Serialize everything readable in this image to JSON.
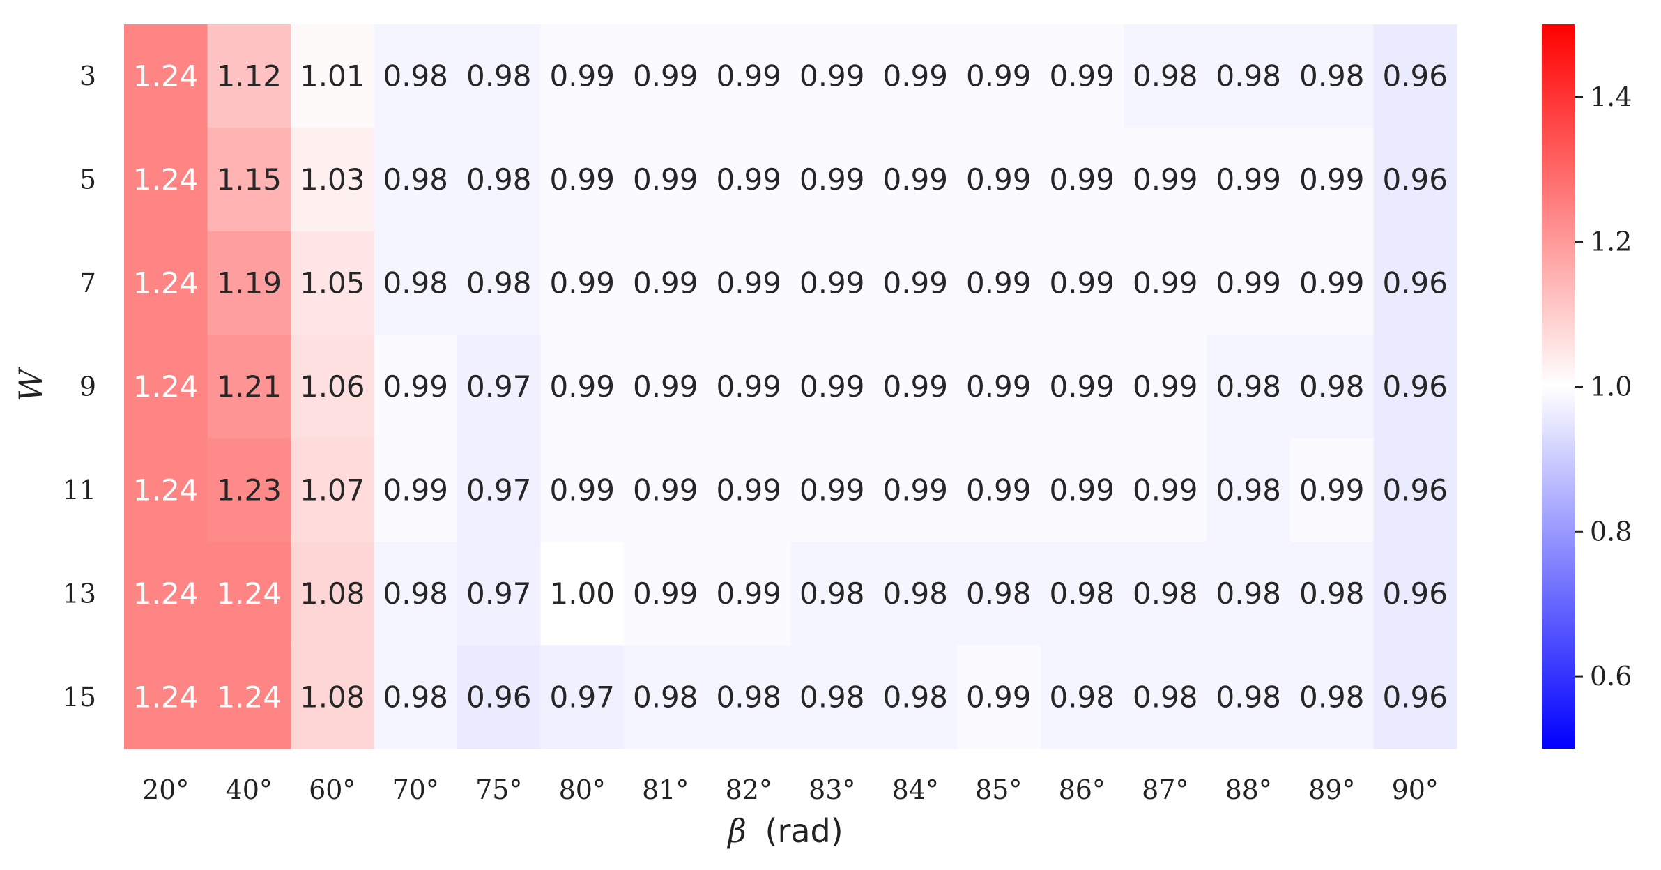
{
  "chart_data": {
    "type": "heatmap",
    "title": "",
    "xlabel": "β (rad)",
    "xlabel_symbol": "β",
    "xlabel_unit": "(rad)",
    "ylabel": "W",
    "x_categories": [
      "20°",
      "40°",
      "60°",
      "70°",
      "75°",
      "80°",
      "81°",
      "82°",
      "83°",
      "84°",
      "85°",
      "86°",
      "87°",
      "88°",
      "89°",
      "90°"
    ],
    "y_categories": [
      "3",
      "5",
      "7",
      "9",
      "11",
      "13",
      "15"
    ],
    "values": [
      [
        1.24,
        1.12,
        1.01,
        0.98,
        0.98,
        0.99,
        0.99,
        0.99,
        0.99,
        0.99,
        0.99,
        0.99,
        0.98,
        0.98,
        0.98,
        0.96
      ],
      [
        1.24,
        1.15,
        1.03,
        0.98,
        0.98,
        0.99,
        0.99,
        0.99,
        0.99,
        0.99,
        0.99,
        0.99,
        0.99,
        0.99,
        0.99,
        0.96
      ],
      [
        1.24,
        1.19,
        1.05,
        0.98,
        0.98,
        0.99,
        0.99,
        0.99,
        0.99,
        0.99,
        0.99,
        0.99,
        0.99,
        0.99,
        0.99,
        0.96
      ],
      [
        1.24,
        1.21,
        1.06,
        0.99,
        0.97,
        0.99,
        0.99,
        0.99,
        0.99,
        0.99,
        0.99,
        0.99,
        0.99,
        0.98,
        0.98,
        0.96
      ],
      [
        1.24,
        1.23,
        1.07,
        0.99,
        0.97,
        0.99,
        0.99,
        0.99,
        0.99,
        0.99,
        0.99,
        0.99,
        0.99,
        0.98,
        0.99,
        0.96
      ],
      [
        1.24,
        1.24,
        1.08,
        0.98,
        0.97,
        1.0,
        0.99,
        0.99,
        0.98,
        0.98,
        0.98,
        0.98,
        0.98,
        0.98,
        0.98,
        0.96
      ],
      [
        1.24,
        1.24,
        1.08,
        0.98,
        0.96,
        0.97,
        0.98,
        0.98,
        0.98,
        0.98,
        0.99,
        0.98,
        0.98,
        0.98,
        0.98,
        0.96
      ]
    ],
    "value_format": "2 decimals",
    "colormap": "bwr",
    "colormap_colors": {
      "low": "#0000ff",
      "mid": "#ffffff",
      "high": "#ff0000"
    },
    "color_range": [
      0.5,
      1.5
    ],
    "colorbar_ticks": [
      "0.6",
      "0.8",
      "1.0",
      "1.2",
      "1.4"
    ],
    "colorbar_tick_values": [
      0.6,
      0.8,
      1.0,
      1.2,
      1.4
    ],
    "colorbar_placement": "right",
    "annotation_colors": {
      "dark": "#262626",
      "light": "#ffffff"
    },
    "grid": false
  }
}
